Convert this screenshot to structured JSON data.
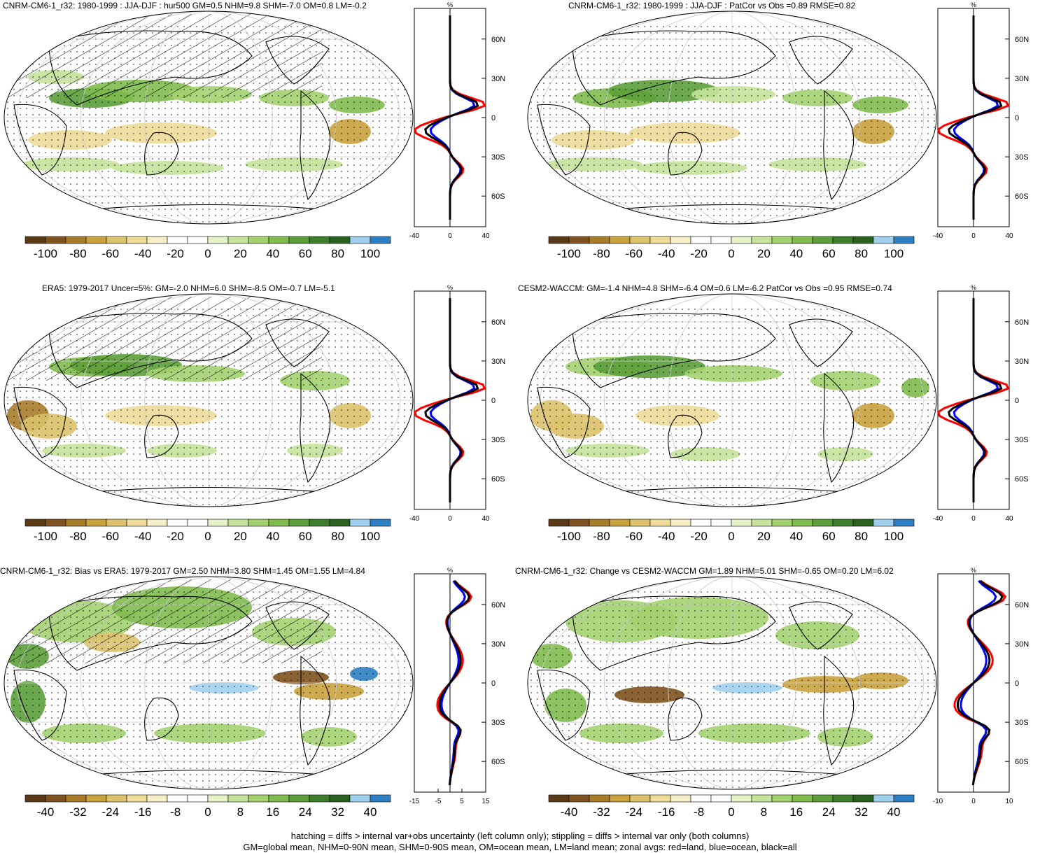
{
  "panels": [
    {
      "title": "CNRM-CM6-1_r32: 1980-1999 : JJA-DJF : hur500 GM=0.5 NHM=9.8 SHM=-7.0 OM=0.8 LM=-0.2",
      "colorbar_labels": [
        "-100",
        "-80",
        "-60",
        "-40",
        "-20",
        "0",
        "20",
        "40",
        "60",
        "80",
        "100"
      ],
      "zonal_xticks": [
        "-40",
        "0",
        "40"
      ],
      "zonal_unit": "%",
      "lat_labels": [
        "60N",
        "30N",
        "0",
        "30S",
        "60S"
      ],
      "hatching": true
    },
    {
      "title": "CNRM-CM6-1_r32: 1980-1999 : JJA-DJF : PatCor vs Obs =0.89 RMSE=0.82",
      "colorbar_labels": [
        "-100",
        "-80",
        "-60",
        "-40",
        "-20",
        "0",
        "20",
        "40",
        "60",
        "80",
        "100"
      ],
      "zonal_xticks": [
        "-40",
        "0",
        "40"
      ],
      "zonal_unit": "%",
      "lat_labels": [
        "60N",
        "30N",
        "0",
        "30S",
        "60S"
      ],
      "hatching": false
    },
    {
      "title": "ERA5: 1979-2017 Uncer=5%: GM=-2.0 NHM=6.0 SHM=-8.5 OM=-0.7 LM=-5.1",
      "colorbar_labels": [
        "-100",
        "-80",
        "-60",
        "-40",
        "-20",
        "0",
        "20",
        "40",
        "60",
        "80",
        "100"
      ],
      "zonal_xticks": [
        "-40",
        "0",
        "40"
      ],
      "zonal_unit": "%",
      "lat_labels": [
        "60N",
        "30N",
        "0",
        "30S",
        "60S"
      ],
      "hatching": true
    },
    {
      "title": "CESM2-WACCM: GM=-1.4 NHM=4.8 SHM=-6.4 OM=0.6 LM=-6.2 PatCor vs Obs =0.95 RMSE=0.74",
      "colorbar_labels": [
        "-100",
        "-80",
        "-60",
        "-40",
        "-20",
        "0",
        "20",
        "40",
        "60",
        "80",
        "100"
      ],
      "zonal_xticks": [
        "-40",
        "0",
        "40"
      ],
      "zonal_unit": "%",
      "lat_labels": [
        "60N",
        "30N",
        "0",
        "30S",
        "60S"
      ],
      "hatching": false
    },
    {
      "title": "CNRM-CM6-1_r32: Bias vs ERA5: 1979-2017 GM=2.50 NHM=3.80 SHM=1.45 OM=1.55 LM=4.84",
      "colorbar_labels": [
        "-40",
        "-32",
        "-24",
        "-16",
        "-8",
        "0",
        "8",
        "16",
        "24",
        "32",
        "40"
      ],
      "zonal_xticks": [
        "-15",
        "-5",
        "5",
        "15"
      ],
      "zonal_unit": "%",
      "lat_labels": [
        "60N",
        "30N",
        "0",
        "30S",
        "60S"
      ],
      "hatching": true
    },
    {
      "title": "CNRM-CM6-1_r32: Change vs CESM2-WACCM GM=1.89 NHM=5.01 SHM=-0.65 OM=0.20 LM=6.02",
      "colorbar_labels": [
        "-40",
        "-32",
        "-24",
        "-16",
        "-8",
        "0",
        "8",
        "16",
        "24",
        "32",
        "40"
      ],
      "zonal_xticks": [
        "-10",
        "0",
        "10"
      ],
      "zonal_unit": "%",
      "lat_labels": [
        "60N",
        "30N",
        "0",
        "30S",
        "60S"
      ],
      "hatching": false
    }
  ],
  "colors": {
    "palette": [
      "#5a3a16",
      "#80521f",
      "#a97c2a",
      "#c9a23d",
      "#dcc26a",
      "#eedc98",
      "#f6eec7",
      "#ffffff",
      "#ffffff",
      "#e6f2c8",
      "#c5e39a",
      "#a3d16f",
      "#80bb4e",
      "#5c9e3a",
      "#3d7f2b",
      "#2a6020",
      "#9fd0ee",
      "#2c7fc2"
    ],
    "land_line": "#ff0000",
    "ocean_line": "#0000ff",
    "all_line": "#000000"
  },
  "footer": {
    "line1": "hatching = diffs > internal var+obs uncertainty (left column only); stippling = diffs > internal var only (both columns)",
    "line2": "GM=global mean, NHM=0-90N mean, SHM=0-90S mean, OM=ocean mean, LM=land mean; zonal avgs: red=land, blue=ocean, black=all"
  }
}
